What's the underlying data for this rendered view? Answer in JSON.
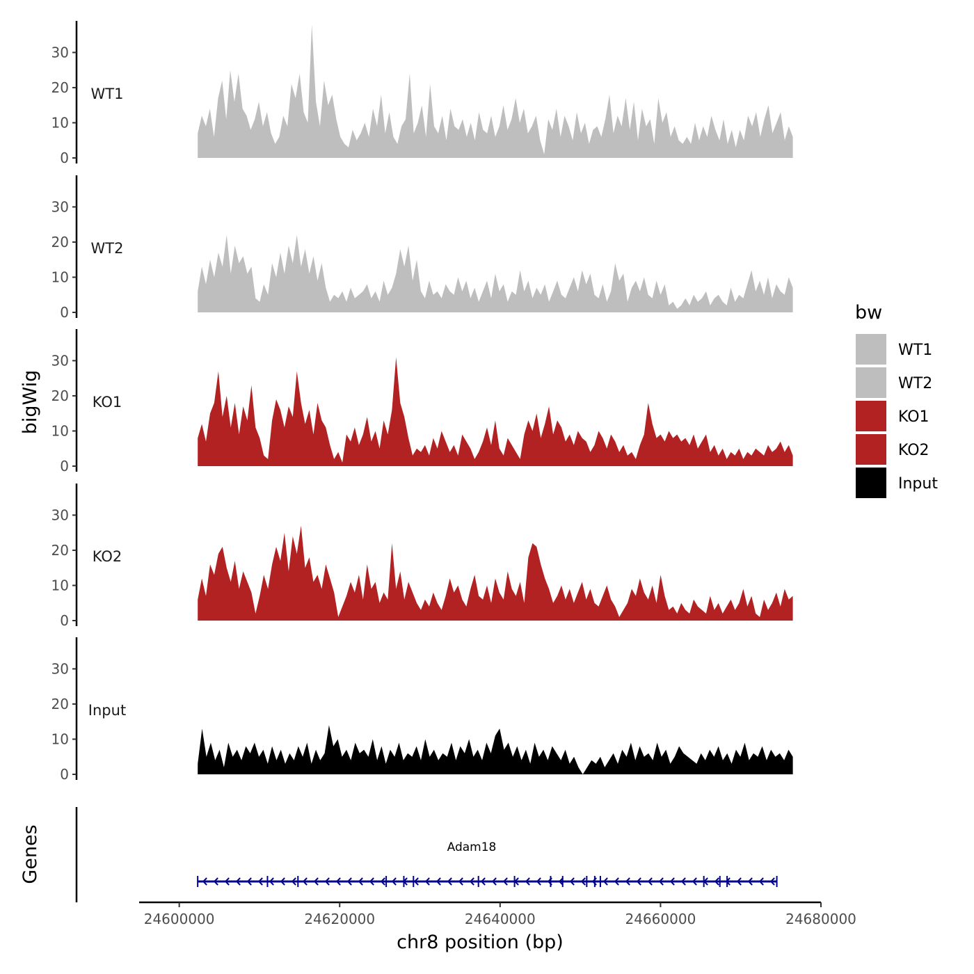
{
  "chart_data": {
    "type": "area",
    "title": "",
    "xlabel": "chr8 position (bp)",
    "ylabel": "bigWig",
    "gene_panel_label": "Genes",
    "xlim": [
      24595000,
      24680000
    ],
    "ylim": [
      0,
      38
    ],
    "x_ticks": [
      24600000,
      24620000,
      24640000,
      24660000,
      24680000
    ],
    "x_tick_labels": [
      "24600000",
      "24620000",
      "24640000",
      "24660000",
      "24680000"
    ],
    "y_ticks": [
      0,
      10,
      20,
      30
    ],
    "y_tick_labels": [
      "0",
      "10",
      "20",
      "30"
    ],
    "legend": {
      "title": "bw",
      "entries": [
        {
          "label": "WT1",
          "color": "#bebebe"
        },
        {
          "label": "WT2",
          "color": "#bebebe"
        },
        {
          "label": "KO1",
          "color": "#b22222"
        },
        {
          "label": "KO2",
          "color": "#b22222"
        },
        {
          "label": "Input",
          "color": "#000000"
        }
      ]
    },
    "gene": {
      "name": "Adam18",
      "start": 24602300,
      "end": 24674500,
      "strand": "-",
      "color": "#00008b",
      "exon_positions": [
        24602300,
        24611000,
        24614800,
        24625800,
        24628000,
        24629200,
        24637300,
        24641800,
        24646300,
        24647800,
        24650800,
        24651800,
        24652500,
        24665400,
        24667400,
        24668300,
        24674500
      ]
    },
    "series": [
      {
        "name": "WT1",
        "color": "#bebebe",
        "x_start": 24602300,
        "x_end": 24676500,
        "values": [
          7,
          12,
          9,
          14,
          6,
          17,
          22,
          11,
          25,
          16,
          24,
          14,
          12,
          8,
          11,
          16,
          9,
          13,
          7,
          4,
          6,
          12,
          9,
          21,
          17,
          24,
          13,
          10,
          38,
          16,
          9,
          22,
          15,
          18,
          11,
          6,
          4,
          3,
          8,
          5,
          7,
          10,
          6,
          14,
          9,
          18,
          7,
          13,
          6,
          4,
          9,
          11,
          24,
          7,
          10,
          15,
          6,
          21,
          9,
          7,
          12,
          5,
          14,
          9,
          8,
          11,
          6,
          10,
          5,
          13,
          8,
          7,
          12,
          6,
          9,
          15,
          8,
          11,
          17,
          10,
          14,
          7,
          9,
          12,
          5,
          1,
          11,
          8,
          14,
          6,
          12,
          9,
          5,
          13,
          7,
          10,
          4,
          8,
          9,
          6,
          11,
          18,
          7,
          12,
          9,
          17,
          8,
          16,
          5,
          14,
          9,
          11,
          4,
          17,
          10,
          13,
          6,
          9,
          5,
          4,
          6,
          4,
          10,
          5,
          9,
          6,
          12,
          8,
          5,
          11,
          4,
          8,
          3,
          8,
          5,
          12,
          9,
          13,
          6,
          11,
          15,
          7,
          10,
          13,
          5,
          9,
          6
        ]
      },
      {
        "name": "WT2",
        "color": "#bebebe",
        "x_start": 24602300,
        "x_end": 24676500,
        "values": [
          6,
          13,
          8,
          15,
          10,
          17,
          13,
          22,
          11,
          19,
          14,
          16,
          11,
          13,
          4,
          3,
          8,
          5,
          14,
          10,
          17,
          11,
          19,
          14,
          22,
          13,
          18,
          11,
          16,
          9,
          14,
          7,
          3,
          5,
          4,
          6,
          3,
          7,
          4,
          5,
          6,
          8,
          4,
          6,
          3,
          9,
          5,
          7,
          11,
          18,
          13,
          19,
          9,
          15,
          6,
          4,
          9,
          5,
          6,
          4,
          8,
          6,
          5,
          10,
          6,
          9,
          4,
          7,
          3,
          6,
          9,
          4,
          11,
          6,
          8,
          3,
          6,
          5,
          12,
          6,
          9,
          4,
          7,
          5,
          8,
          3,
          6,
          9,
          5,
          4,
          7,
          10,
          6,
          12,
          8,
          11,
          5,
          4,
          8,
          3,
          6,
          14,
          9,
          11,
          3,
          7,
          9,
          6,
          10,
          5,
          4,
          9,
          5,
          8,
          2,
          3,
          1,
          2,
          4,
          2,
          5,
          3,
          4,
          6,
          2,
          4,
          5,
          3,
          2,
          7,
          3,
          5,
          4,
          8,
          12,
          6,
          9,
          5,
          10,
          4,
          8,
          6,
          5,
          10,
          7
        ]
      },
      {
        "name": "KO1",
        "color": "#b22222",
        "x_start": 24602300,
        "x_end": 24676500,
        "values": [
          8,
          12,
          7,
          15,
          18,
          27,
          14,
          20,
          11,
          18,
          9,
          17,
          13,
          23,
          11,
          8,
          3,
          2,
          13,
          19,
          16,
          11,
          17,
          14,
          27,
          18,
          12,
          16,
          9,
          18,
          13,
          11,
          6,
          2,
          4,
          1,
          9,
          7,
          11,
          6,
          9,
          14,
          7,
          10,
          5,
          13,
          9,
          16,
          31,
          18,
          14,
          8,
          3,
          5,
          4,
          6,
          3,
          8,
          5,
          10,
          7,
          4,
          6,
          3,
          9,
          7,
          5,
          2,
          4,
          7,
          11,
          6,
          13,
          5,
          3,
          8,
          6,
          4,
          2,
          9,
          13,
          10,
          15,
          8,
          12,
          17,
          9,
          13,
          11,
          7,
          9,
          6,
          10,
          8,
          7,
          4,
          6,
          10,
          8,
          5,
          9,
          7,
          4,
          6,
          3,
          4,
          2,
          6,
          9,
          18,
          12,
          8,
          9,
          7,
          10,
          8,
          9,
          7,
          8,
          6,
          9,
          5,
          7,
          9,
          4,
          6,
          3,
          5,
          2,
          4,
          3,
          5,
          2,
          4,
          3,
          5,
          4,
          3,
          6,
          4,
          5,
          7,
          4,
          6,
          3
        ]
      },
      {
        "name": "KO2",
        "color": "#b22222",
        "x_start": 24602300,
        "x_end": 24676500,
        "values": [
          6,
          12,
          7,
          16,
          13,
          19,
          21,
          15,
          11,
          17,
          9,
          14,
          11,
          8,
          2,
          7,
          13,
          9,
          16,
          21,
          17,
          25,
          14,
          24,
          19,
          27,
          15,
          18,
          11,
          13,
          9,
          16,
          12,
          8,
          1,
          4,
          7,
          11,
          8,
          13,
          6,
          16,
          9,
          11,
          5,
          8,
          6,
          22,
          9,
          14,
          6,
          11,
          8,
          5,
          3,
          6,
          4,
          8,
          5,
          3,
          7,
          12,
          8,
          10,
          6,
          4,
          9,
          13,
          7,
          6,
          10,
          5,
          12,
          8,
          6,
          14,
          9,
          7,
          11,
          5,
          18,
          22,
          21,
          16,
          12,
          9,
          5,
          7,
          10,
          6,
          9,
          5,
          8,
          11,
          6,
          9,
          5,
          4,
          7,
          10,
          6,
          4,
          1,
          3,
          5,
          9,
          7,
          12,
          8,
          6,
          10,
          5,
          13,
          7,
          3,
          4,
          2,
          5,
          3,
          2,
          6,
          4,
          3,
          2,
          7,
          3,
          5,
          2,
          4,
          6,
          3,
          5,
          9,
          4,
          7,
          2,
          1,
          6,
          3,
          5,
          8,
          4,
          9,
          6,
          7
        ]
      },
      {
        "name": "Input",
        "color": "#000000",
        "x_start": 24602300,
        "x_end": 24676500,
        "values": [
          3,
          13,
          5,
          9,
          4,
          7,
          2,
          9,
          5,
          7,
          4,
          8,
          6,
          9,
          5,
          7,
          3,
          8,
          4,
          7,
          3,
          6,
          4,
          8,
          5,
          9,
          3,
          7,
          4,
          6,
          14,
          8,
          10,
          5,
          7,
          4,
          9,
          6,
          7,
          5,
          10,
          4,
          8,
          3,
          7,
          5,
          9,
          4,
          6,
          5,
          8,
          4,
          10,
          5,
          7,
          4,
          6,
          5,
          9,
          4,
          8,
          6,
          10,
          5,
          7,
          4,
          9,
          6,
          11,
          13,
          7,
          9,
          5,
          8,
          4,
          7,
          3,
          9,
          5,
          7,
          4,
          8,
          6,
          4,
          7,
          3,
          5,
          2,
          0,
          2,
          4,
          3,
          5,
          2,
          4,
          6,
          3,
          7,
          5,
          9,
          4,
          8,
          5,
          6,
          4,
          9,
          5,
          7,
          3,
          5,
          8,
          6,
          5,
          4,
          3,
          6,
          4,
          7,
          5,
          8,
          4,
          6,
          3,
          7,
          5,
          9,
          4,
          6,
          5,
          8,
          4,
          7,
          5,
          6,
          4,
          7,
          5
        ]
      }
    ]
  }
}
